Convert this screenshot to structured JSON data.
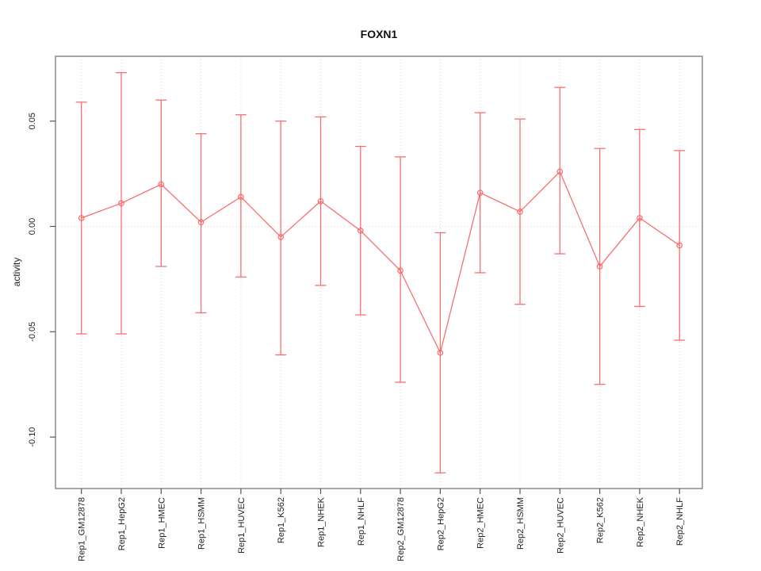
{
  "title": "FOXN1",
  "ylabel": "activity",
  "chart_data": {
    "type": "line",
    "title": "FOXN1",
    "xlabel": "",
    "ylabel": "activity",
    "categories": [
      "Rep1_GM12878",
      "Rep1_HepG2",
      "Rep1_HMEC",
      "Rep1_HSMM",
      "Rep1_HUVEC",
      "Rep1_K562",
      "Rep1_NHEK",
      "Rep1_NHLF",
      "Rep2_GM12878",
      "Rep2_HepG2",
      "Rep2_HMEC",
      "Rep2_HSMM",
      "Rep2_HUVEC",
      "Rep2_K562",
      "Rep2_NHEK",
      "Rep2_NHLF"
    ],
    "series": [
      {
        "name": "activity",
        "marker": "open-circle",
        "values": [
          0.004,
          0.011,
          0.02,
          0.002,
          0.014,
          -0.005,
          0.012,
          -0.002,
          -0.021,
          -0.06,
          0.016,
          0.007,
          0.026,
          -0.019,
          0.004,
          -0.009
        ],
        "error_upper": [
          0.059,
          0.073,
          0.06,
          0.044,
          0.053,
          0.05,
          0.052,
          0.038,
          0.033,
          -0.003,
          0.054,
          0.051,
          0.066,
          0.037,
          0.046,
          0.036
        ],
        "error_lower": [
          -0.051,
          -0.051,
          -0.019,
          -0.041,
          -0.024,
          -0.061,
          -0.028,
          -0.042,
          -0.074,
          -0.117,
          -0.022,
          -0.037,
          -0.013,
          -0.075,
          -0.038,
          -0.054
        ]
      }
    ],
    "yticks": [
      0.05,
      0.0,
      -0.05,
      -0.1
    ],
    "ylim": [
      -0.123,
      0.081
    ],
    "grid": {
      "vertical_dotted_per_category": true,
      "horizontal_dotted_at_zero": true
    },
    "legend": "none",
    "colors": {
      "series": "#f96a6a",
      "grid": "#d9d9d9",
      "zero_line": "#d4d4d4",
      "box": "#8a8a8a",
      "tick": "#555555",
      "text": "#222222",
      "background": "#ffffff"
    }
  }
}
